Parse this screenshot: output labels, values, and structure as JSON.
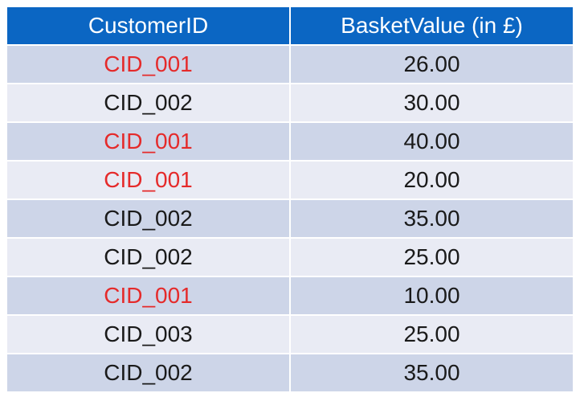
{
  "table": {
    "columns": [
      "CustomerID",
      "BasketValue (in £)"
    ],
    "rows": [
      {
        "customer_id": "CID_001",
        "basket_value": "26.00",
        "highlighted": true
      },
      {
        "customer_id": "CID_002",
        "basket_value": "30.00",
        "highlighted": false
      },
      {
        "customer_id": "CID_001",
        "basket_value": "40.00",
        "highlighted": true
      },
      {
        "customer_id": "CID_001",
        "basket_value": "20.00",
        "highlighted": true
      },
      {
        "customer_id": "CID_002",
        "basket_value": "35.00",
        "highlighted": false
      },
      {
        "customer_id": "CID_002",
        "basket_value": "25.00",
        "highlighted": false
      },
      {
        "customer_id": "CID_001",
        "basket_value": "10.00",
        "highlighted": true
      },
      {
        "customer_id": "CID_003",
        "basket_value": "25.00",
        "highlighted": false
      },
      {
        "customer_id": "CID_002",
        "basket_value": "35.00",
        "highlighted": false
      }
    ]
  },
  "colors": {
    "header_bg": "#0b66c3",
    "row_odd_bg": "#cdd5e8",
    "row_even_bg": "#e9ebf4",
    "highlight_text": "#e52a2a"
  }
}
